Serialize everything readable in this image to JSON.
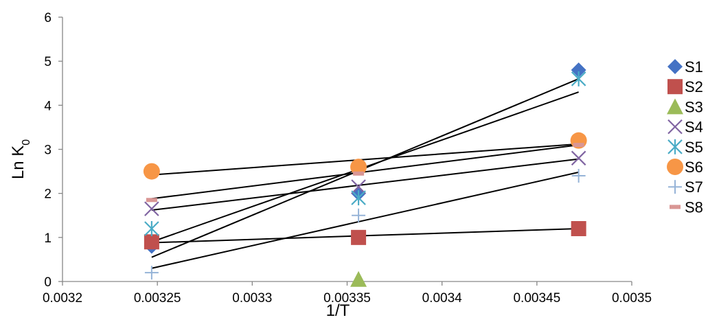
{
  "chart_data": {
    "type": "scatter",
    "xlabel": "1/T",
    "ylabel_main": "Ln K",
    "ylabel_sub": "0",
    "xlim": [
      0.0032,
      0.0035
    ],
    "ylim": [
      0,
      6
    ],
    "x_ticks": [
      0.0032,
      0.00325,
      0.0033,
      0.00335,
      0.0034,
      0.00345,
      0.0035
    ],
    "x_tick_labels": [
      "0.0032",
      "0.00325",
      "0.0033",
      "0.00335",
      "0.0034",
      "0.00345",
      "0.0035"
    ],
    "y_ticks": [
      0,
      1,
      2,
      3,
      4,
      5,
      6
    ],
    "y_tick_labels": [
      "0",
      "1",
      "2",
      "3",
      "4",
      "5",
      "6"
    ],
    "x": [
      0.003247,
      0.003356,
      0.003472
    ],
    "legend_position": "right",
    "series": [
      {
        "name": "S1",
        "marker": "diamond",
        "color": "#4472C4",
        "y": [
          0.8,
          2.0,
          4.8
        ],
        "trend": [
          0.55,
          4.6
        ]
      },
      {
        "name": "S2",
        "marker": "square",
        "color": "#C0504D",
        "y": [
          0.9,
          1.0,
          1.2
        ],
        "trend": [
          0.88,
          1.2
        ]
      },
      {
        "name": "S3",
        "marker": "triangle",
        "color": "#9BBB59",
        "y": [
          null,
          0.05,
          null
        ],
        "trend": null
      },
      {
        "name": "S4",
        "marker": "x",
        "color": "#8064A2",
        "y": [
          1.65,
          2.15,
          2.8
        ],
        "trend": [
          1.62,
          2.78
        ]
      },
      {
        "name": "S5",
        "marker": "star",
        "color": "#4BACC6",
        "y": [
          1.2,
          1.9,
          4.6
        ],
        "trend": [
          0.9,
          4.3
        ]
      },
      {
        "name": "S6",
        "marker": "circle",
        "color": "#F79646",
        "y": [
          2.5,
          2.6,
          3.2
        ],
        "trend": [
          2.42,
          3.12
        ]
      },
      {
        "name": "S7",
        "marker": "plus",
        "color": "#95B3D7",
        "y": [
          0.2,
          1.5,
          2.4
        ],
        "trend": [
          0.3,
          2.48
        ]
      },
      {
        "name": "S8",
        "marker": "dash",
        "color": "#D99694",
        "y": [
          1.85,
          2.45,
          3.1
        ],
        "trend": [
          1.88,
          3.1
        ]
      }
    ]
  }
}
